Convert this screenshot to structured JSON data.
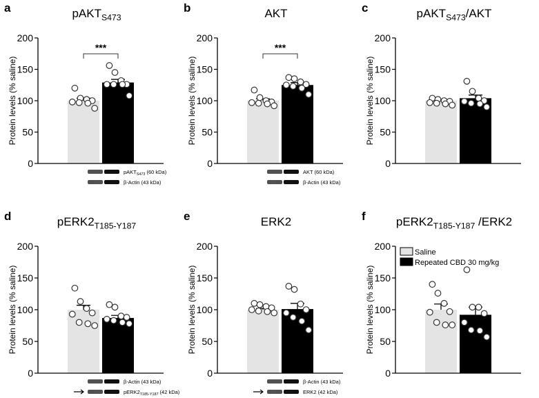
{
  "chart_data": [
    {
      "type": "bar",
      "panel": "a",
      "title": {
        "main": "pAKT",
        "sub": "S473",
        "suffix": ""
      },
      "ylabel": "Protein levels (% saline)",
      "ylim": [
        0,
        200
      ],
      "yticks": [
        0,
        50,
        100,
        150,
        200
      ],
      "categories": [
        "Saline",
        "Repeated CBD 30 mg/kg"
      ],
      "values": [
        100,
        129
      ],
      "sem": [
        4,
        5
      ],
      "points": [
        [
          120,
          104,
          102,
          100,
          98,
          97,
          96,
          88
        ],
        [
          156,
          145,
          132,
          126,
          126,
          126,
          126,
          108
        ]
      ],
      "significance": "***",
      "blot": [
        {
          "main": "pAKT",
          "sub": "S473",
          "suffix": " (60 kDa)"
        },
        {
          "main": "β-Actin (43 kDa)",
          "sub": "",
          "suffix": ""
        }
      ],
      "arrow": false
    },
    {
      "type": "bar",
      "panel": "b",
      "title": {
        "main": "AKT",
        "sub": "",
        "suffix": ""
      },
      "ylabel": "Protein levels (% saline)",
      "ylim": [
        0,
        200
      ],
      "yticks": [
        0,
        50,
        100,
        150,
        200
      ],
      "categories": [
        "Saline",
        "Repeated CBD 30 mg/kg"
      ],
      "values": [
        100,
        125
      ],
      "sem": [
        3,
        4
      ],
      "points": [
        [
          117,
          105,
          100,
          98,
          97,
          96,
          95,
          92
        ],
        [
          137,
          135,
          130,
          126,
          125,
          123,
          120,
          110
        ]
      ],
      "significance": "***",
      "blot": [
        {
          "main": "AKT (60 kDa)",
          "sub": "",
          "suffix": ""
        },
        {
          "main": "β-Actin (43 kDa)",
          "sub": "",
          "suffix": ""
        }
      ],
      "arrow": false
    },
    {
      "type": "bar",
      "panel": "c",
      "title": {
        "main": "pAKT",
        "sub": "S473",
        "suffix": "/AKT"
      },
      "ylabel": "Protein levels (% saline)",
      "ylim": [
        0,
        200
      ],
      "yticks": [
        0,
        50,
        100,
        150,
        200
      ],
      "categories": [
        "Saline",
        "Repeated CBD 30 mg/kg"
      ],
      "values": [
        100,
        104
      ],
      "sem": [
        2,
        5
      ],
      "points": [
        [
          104,
          102,
          100,
          99,
          97,
          96,
          95,
          93
        ],
        [
          131,
          115,
          104,
          100,
          99,
          96,
          95,
          90
        ]
      ],
      "significance": "",
      "blot": [],
      "arrow": false
    },
    {
      "type": "bar",
      "panel": "d",
      "title": {
        "main": "pERK2",
        "sub": "T185-Y187",
        "suffix": ""
      },
      "ylabel": "Protein levels (% saline)",
      "ylim": [
        0,
        200
      ],
      "yticks": [
        0,
        50,
        100,
        150,
        200
      ],
      "categories": [
        "Saline",
        "Repeated CBD 30 mg/kg"
      ],
      "values": [
        100,
        87
      ],
      "sem": [
        7,
        4
      ],
      "points": [
        [
          134,
          113,
          102,
          95,
          93,
          80,
          78,
          75
        ],
        [
          108,
          104,
          90,
          88,
          85,
          83,
          80,
          78
        ]
      ],
      "significance": "",
      "blot": [
        {
          "main": "β-Actin (43 kDa)",
          "sub": "",
          "suffix": ""
        },
        {
          "main": "pERK2",
          "sub": "T185-Y187",
          "suffix": " (42 kDa)"
        }
      ],
      "arrow": true
    },
    {
      "type": "bar",
      "panel": "e",
      "title": {
        "main": "ERK2",
        "sub": "",
        "suffix": ""
      },
      "ylabel": "Protein levels (% saline)",
      "ylim": [
        0,
        200
      ],
      "yticks": [
        0,
        50,
        100,
        150,
        200
      ],
      "categories": [
        "Saline",
        "Repeated CBD 30 mg/kg"
      ],
      "values": [
        100,
        101
      ],
      "sem": [
        2,
        9
      ],
      "points": [
        [
          110,
          108,
          105,
          103,
          100,
          98,
          97,
          95
        ],
        [
          137,
          132,
          109,
          100,
          95,
          88,
          82,
          68
        ]
      ],
      "significance": "",
      "blot": [
        {
          "main": "β-Actin (43 kDa)",
          "sub": "",
          "suffix": ""
        },
        {
          "main": "ERK2 (42 kDa)",
          "sub": "",
          "suffix": ""
        }
      ],
      "arrow": true
    },
    {
      "type": "bar",
      "panel": "f",
      "title": {
        "main": "pERK2",
        "sub": "T185-Y187",
        "suffix": " /ERK2"
      },
      "ylabel": "Protein levels (% saline)",
      "ylim": [
        0,
        200
      ],
      "yticks": [
        0,
        50,
        100,
        150,
        200
      ],
      "categories": [
        "Saline",
        "Repeated CBD 30 mg/kg"
      ],
      "values": [
        100,
        92
      ],
      "sem": [
        9,
        12
      ],
      "points": [
        [
          140,
          126,
          110,
          97,
          96,
          80,
          76,
          76
        ],
        [
          163,
          104,
          104,
          94,
          80,
          68,
          67,
          57
        ]
      ],
      "significance": "",
      "blot": [],
      "arrow": false,
      "legend": true
    }
  ],
  "legend": {
    "position": "top-left",
    "items": [
      "Saline",
      "Repeated CBD 30 mg/kg"
    ]
  },
  "colors": {
    "saline": "#e4e4e4",
    "cbd": "#000000"
  }
}
